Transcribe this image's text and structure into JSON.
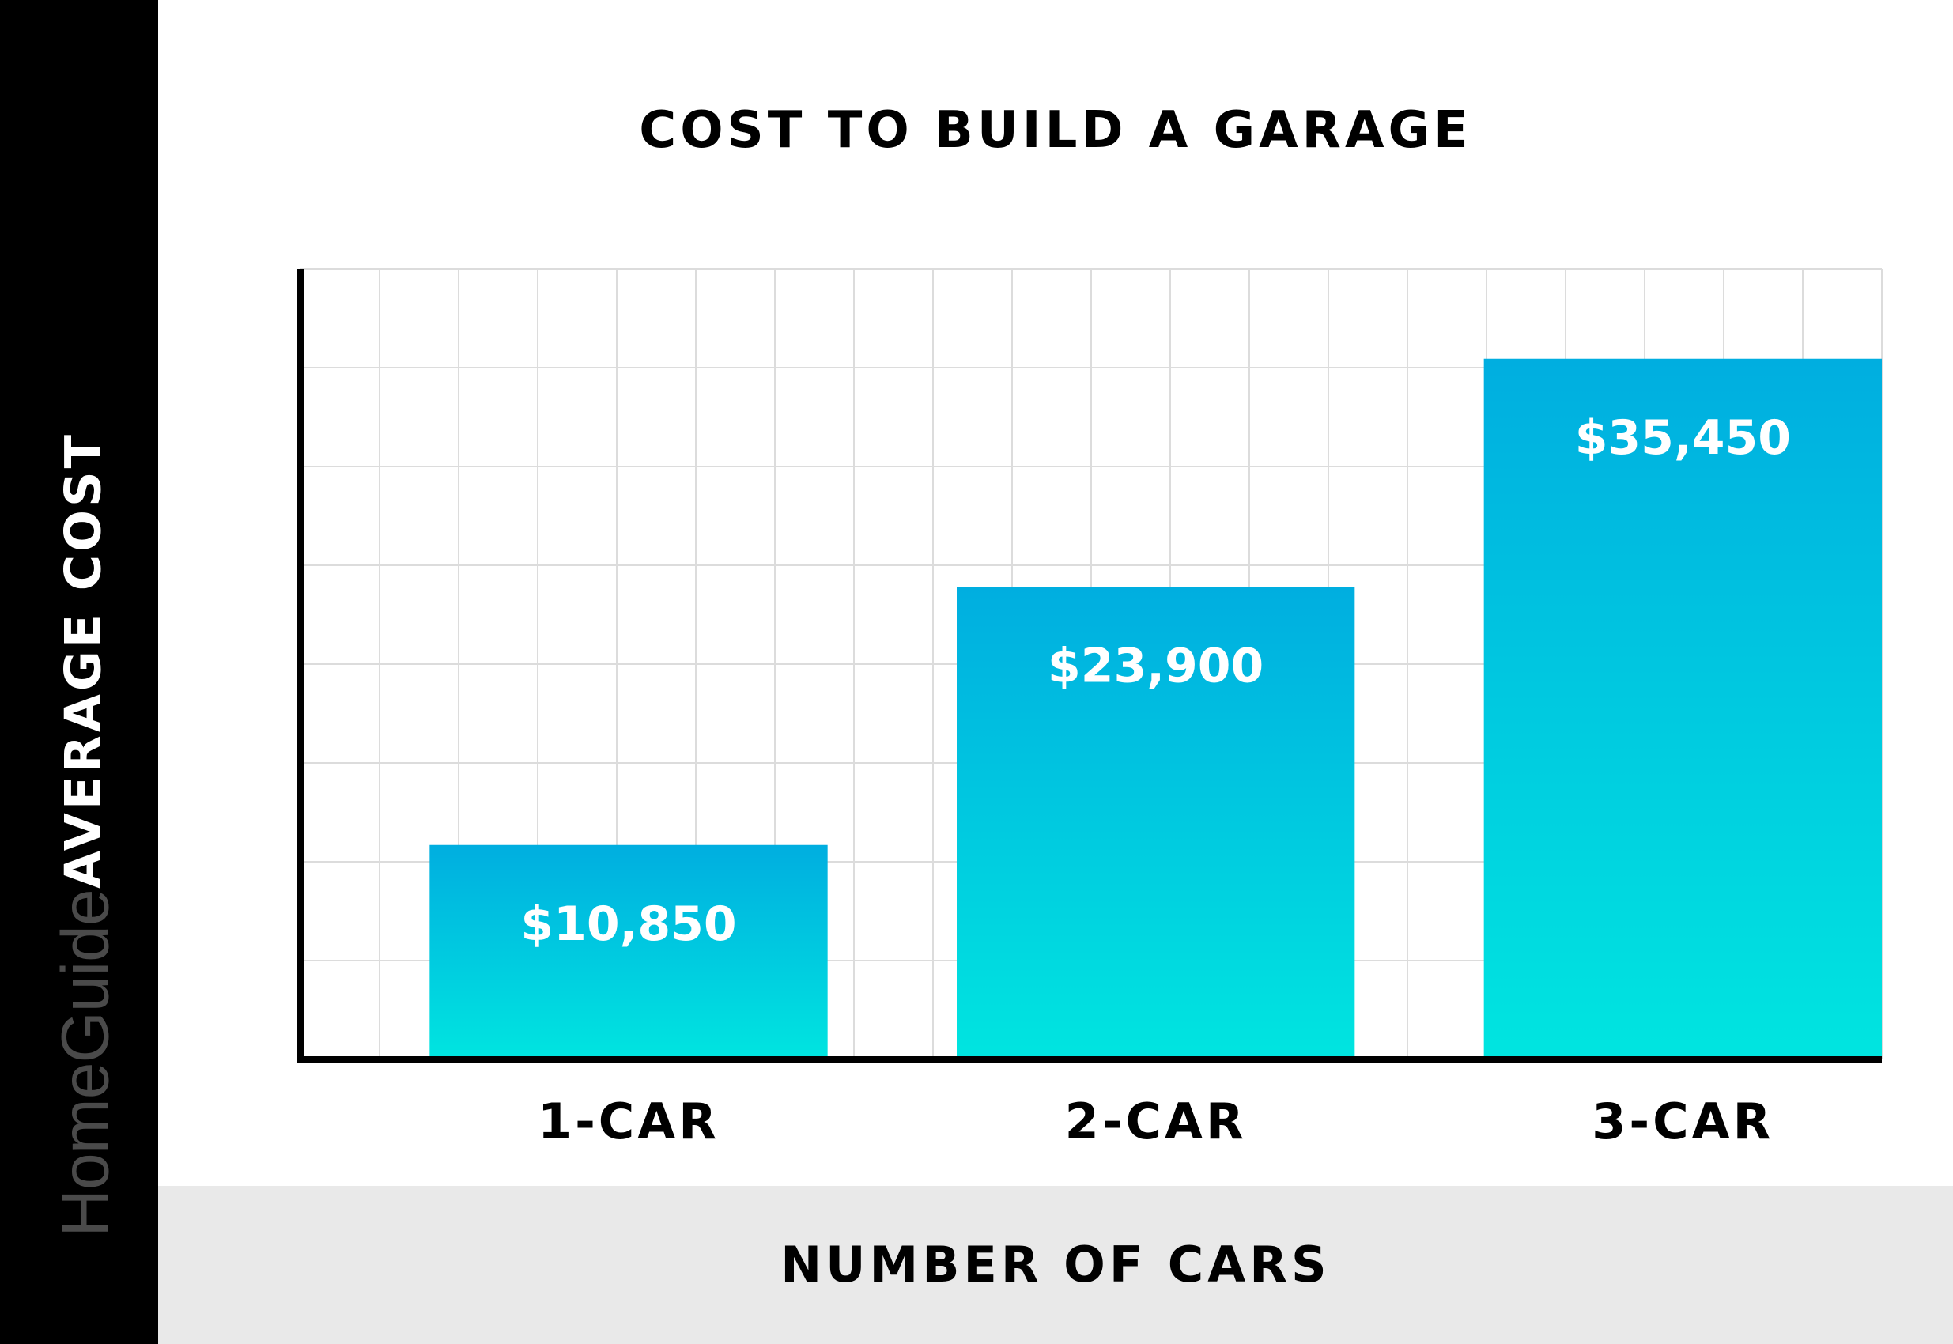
{
  "brand": {
    "name": "HomeGuide"
  },
  "colors": {
    "bar_top": "#00aee0",
    "bar_bottom": "#00e5e0",
    "sidebar": "#000000",
    "footer": "#e9e9e9"
  },
  "chart_data": {
    "type": "bar",
    "title": "COST TO BUILD A GARAGE",
    "xlabel": "NUMBER OF CARS",
    "ylabel": "AVERAGE COST",
    "categories": [
      "1-CAR",
      "2-CAR",
      "3-CAR"
    ],
    "values": [
      10850,
      23900,
      35450
    ],
    "value_labels": [
      "$10,850",
      "$23,900",
      "$35,450"
    ],
    "ylim": [
      0,
      40000
    ],
    "grid": true,
    "legend": "none"
  }
}
